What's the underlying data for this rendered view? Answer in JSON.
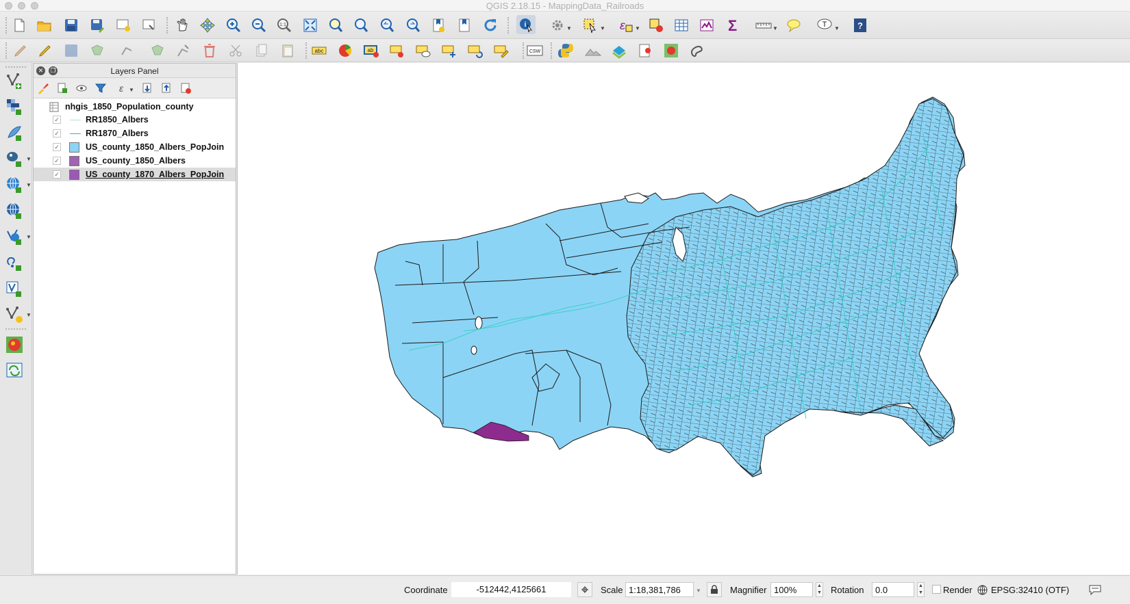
{
  "window": {
    "title": "QGIS 2.18.15 - MappingData_Railroads"
  },
  "toolbar1": {
    "icons": [
      "new-project-icon",
      "open-project-icon",
      "save-project-icon",
      "save-as-icon",
      "new-print-composer-icon",
      "composer-manager-icon",
      "pan-icon",
      "pan-to-selection-icon",
      "zoom-in-icon",
      "zoom-out-icon",
      "zoom-actual-icon",
      "zoom-full-icon",
      "zoom-to-selection-icon",
      "zoom-to-layer-icon",
      "zoom-last-icon",
      "zoom-next-icon",
      "new-bookmark-icon",
      "show-bookmarks-icon",
      "refresh-icon",
      "identify-icon",
      "select-features-icon",
      "select-by-value-icon",
      "select-by-expression-icon",
      "deselect-icon",
      "attribute-table-icon",
      "field-calculator-icon",
      "statistics-icon",
      "measure-icon",
      "map-tips-icon",
      "text-annotation-icon",
      "help-icon"
    ]
  },
  "toolbar2": {
    "csw_label": "CSW",
    "abc_label": "abc",
    "ab_label": "ab"
  },
  "layers_panel": {
    "title": "Layers Panel",
    "group": "nhgis_1850_Population_county",
    "layers": [
      {
        "name": "RR1850_Albers",
        "checked": true,
        "symbol": "line",
        "color": "#a8e4dc"
      },
      {
        "name": "RR1870_Albers",
        "checked": true,
        "symbol": "line",
        "color": "#2fb8b0"
      },
      {
        "name": "US_county_1850_Albers_PopJoin",
        "checked": true,
        "symbol": "fill",
        "color": "#8cd4f5"
      },
      {
        "name": "US_county_1850_Albers",
        "checked": true,
        "symbol": "fill",
        "color": "#a064b0"
      },
      {
        "name": "US_county_1870_Albers_PopJoin",
        "checked": true,
        "symbol": "fill",
        "color": "#9b59b6",
        "selected": true
      }
    ]
  },
  "map": {
    "fill_color": "#8cd4f5",
    "stroke_color": "#1a1a1a",
    "highlight_color": "#8e2b8e",
    "railroad_color": "#2fd0c4"
  },
  "status": {
    "coordinate_label": "Coordinate",
    "coordinate_value": "-512442,4125661",
    "scale_label": "Scale",
    "scale_value": "1:18,381,786",
    "magnifier_label": "Magnifier",
    "magnifier_value": "100%",
    "rotation_label": "Rotation",
    "rotation_value": "0.0",
    "render_label": "Render",
    "render_checked": false,
    "crs_label": "EPSG:32410 (OTF)"
  }
}
